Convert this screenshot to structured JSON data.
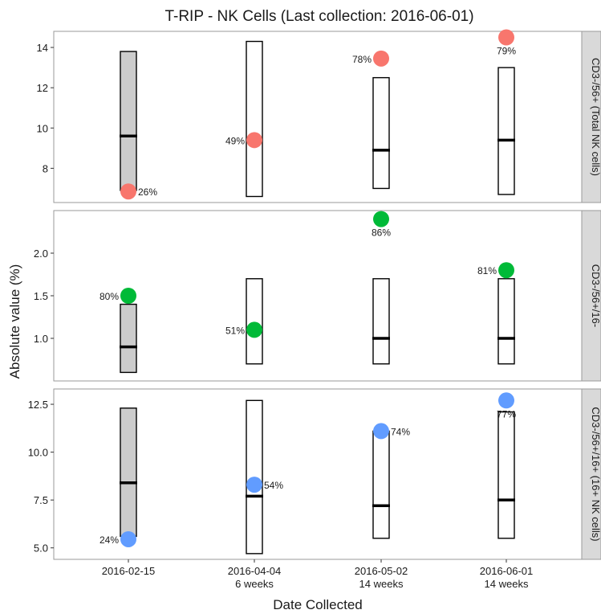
{
  "chart_data": {
    "type": "scatter",
    "title": "T-RIP - NK Cells (Last collection: 2016-06-01)",
    "xlabel": "Date Collected",
    "ylabel": "Absolute value (%)",
    "categories": [
      {
        "date": "2016-02-15",
        "sub": ""
      },
      {
        "date": "2016-04-04",
        "sub": "6 weeks"
      },
      {
        "date": "2016-05-02",
        "sub": "14 weeks"
      },
      {
        "date": "2016-06-01",
        "sub": "14 weeks"
      }
    ],
    "grid": false,
    "facets": [
      {
        "strip": "CD3-/56+ (Total NK cells)",
        "color": "#F8766D",
        "ylim": [
          6.3,
          14.8
        ],
        "yticks": [
          8,
          10,
          12,
          14
        ],
        "ytick_labels": [
          "8",
          "10",
          "12",
          "14"
        ],
        "ranges": [
          {
            "low": 6.9,
            "high": 13.8,
            "median": 9.6,
            "fill": "#cccccc"
          },
          {
            "low": 6.6,
            "high": 14.3,
            "median": null,
            "fill": "#ffffff"
          },
          {
            "low": 7.0,
            "high": 12.5,
            "median": 8.9,
            "fill": "#ffffff"
          },
          {
            "low": 6.7,
            "high": 13.0,
            "median": 9.4,
            "fill": "#ffffff"
          }
        ],
        "points": [
          {
            "value": 6.85,
            "label": "26%",
            "label_pos": "right"
          },
          {
            "value": 9.4,
            "label": "49%",
            "label_pos": "left"
          },
          {
            "value": 13.45,
            "label": "78%",
            "label_pos": "left"
          },
          {
            "value": 14.5,
            "label": "79%",
            "label_pos": "below"
          }
        ]
      },
      {
        "strip": "CD3-/56+/16-",
        "color": "#00BA38",
        "ylim": [
          0.5,
          2.5
        ],
        "yticks": [
          1.0,
          1.5,
          2.0
        ],
        "ytick_labels": [
          "1.0",
          "1.5",
          "2.0"
        ],
        "ranges": [
          {
            "low": 0.6,
            "high": 1.4,
            "median": 0.9,
            "fill": "#cccccc"
          },
          {
            "low": 0.7,
            "high": 1.7,
            "median": null,
            "fill": "#ffffff"
          },
          {
            "low": 0.7,
            "high": 1.7,
            "median": 1.0,
            "fill": "#ffffff"
          },
          {
            "low": 0.7,
            "high": 1.7,
            "median": 1.0,
            "fill": "#ffffff"
          }
        ],
        "points": [
          {
            "value": 1.5,
            "label": "80%",
            "label_pos": "left"
          },
          {
            "value": 1.1,
            "label": "51%",
            "label_pos": "left"
          },
          {
            "value": 2.4,
            "label": "86%",
            "label_pos": "below"
          },
          {
            "value": 1.8,
            "label": "81%",
            "label_pos": "left"
          }
        ]
      },
      {
        "strip": "CD3-/56+/16+ (16+ NK cells)",
        "color": "#619CFF",
        "ylim": [
          4.4,
          13.3
        ],
        "yticks": [
          5.0,
          7.5,
          10.0,
          12.5
        ],
        "ytick_labels": [
          "5.0",
          "7.5",
          "10.0",
          "12.5"
        ],
        "ranges": [
          {
            "low": 5.6,
            "high": 12.3,
            "median": 8.4,
            "fill": "#cccccc"
          },
          {
            "low": 4.7,
            "high": 12.7,
            "median": 7.7,
            "fill": "#ffffff"
          },
          {
            "low": 5.5,
            "high": 11.1,
            "median": 7.2,
            "fill": "#ffffff"
          },
          {
            "low": 5.5,
            "high": 12.1,
            "median": 7.5,
            "fill": "#ffffff"
          }
        ],
        "points": [
          {
            "value": 5.45,
            "label": "24%",
            "label_pos": "left"
          },
          {
            "value": 8.3,
            "label": "54%",
            "label_pos": "right"
          },
          {
            "value": 11.1,
            "label": "74%",
            "label_pos": "right"
          },
          {
            "value": 12.7,
            "label": "77%",
            "label_pos": "below"
          }
        ]
      }
    ]
  }
}
